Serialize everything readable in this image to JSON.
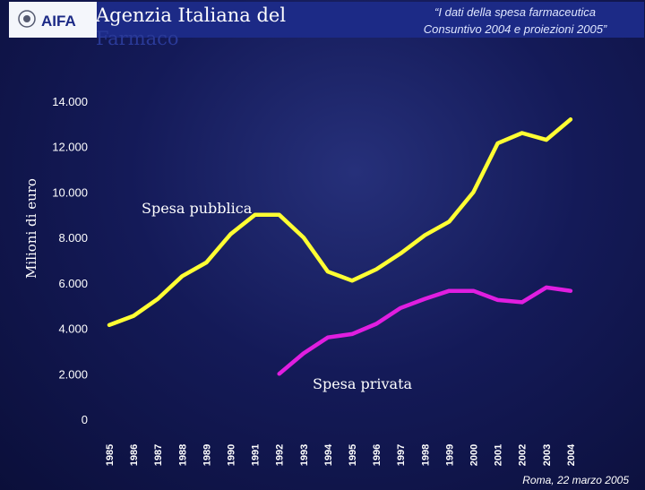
{
  "header": {
    "agency_line1": "Agenzia Italiana del",
    "agency_line2": "Farmaco",
    "logo_text": "AIFA",
    "title_line1": "“I dati della spesa farmaceutica",
    "title_line2": "Consuntivo 2004 e proiezioni 2005”"
  },
  "footer": {
    "note": "Roma, 22 marzo 2005"
  },
  "colors": {
    "public": "#ffff33",
    "private": "#e01ee0",
    "background": "#141a58",
    "header": "#1c2a86"
  },
  "chart_data": {
    "type": "line",
    "title": "",
    "xlabel": "",
    "ylabel": "Milioni di euro",
    "x": [
      "1985",
      "1986",
      "1987",
      "1988",
      "1989",
      "1990",
      "1991",
      "1992",
      "1993",
      "1994",
      "1995",
      "1996",
      "1997",
      "1998",
      "1999",
      "2000",
      "2001",
      "2002",
      "2003",
      "2004"
    ],
    "ylim": [
      0,
      14000
    ],
    "yticks": [
      0,
      2000,
      4000,
      6000,
      8000,
      10000,
      12000,
      14000
    ],
    "ytick_labels": [
      "0",
      "2.000",
      "4.000",
      "6.000",
      "8.000",
      "10.000",
      "12.000",
      "14.000"
    ],
    "series": [
      {
        "name": "Spesa pubblica",
        "color": "#ffff33",
        "values": [
          4150,
          4550,
          5300,
          6300,
          6900,
          8150,
          9000,
          9000,
          8000,
          6500,
          6100,
          6600,
          7300,
          8100,
          8700,
          10000,
          12150,
          12600,
          12300,
          13200
        ]
      },
      {
        "name": "Spesa privata",
        "color": "#e01ee0",
        "values": [
          null,
          null,
          null,
          null,
          null,
          null,
          null,
          2000,
          2900,
          3600,
          3750,
          4200,
          4900,
          5300,
          5650,
          5650,
          5250,
          5150,
          5800,
          5650
        ]
      }
    ],
    "grid": false,
    "legend": "none"
  }
}
